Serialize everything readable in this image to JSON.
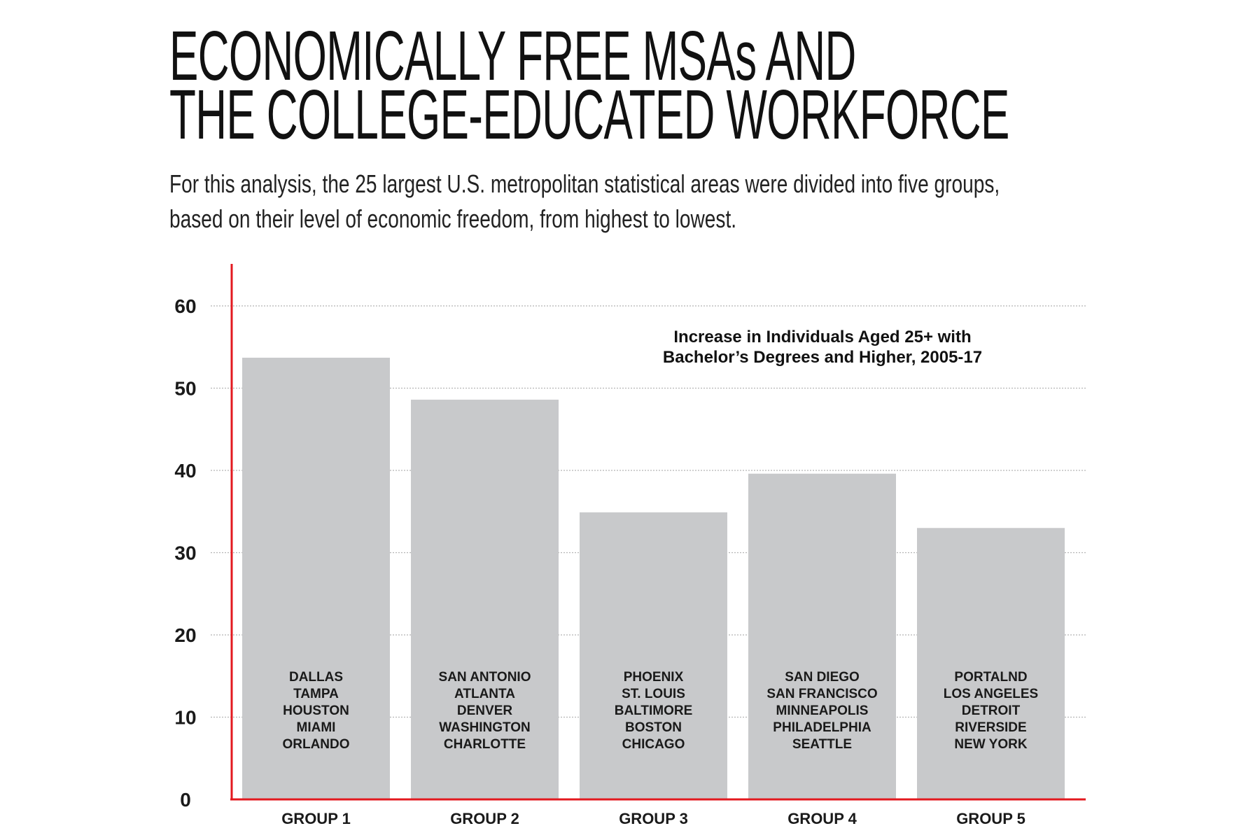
{
  "title": [
    "ECONOMICALLY FREE MSAs AND",
    "THE COLLEGE-EDUCATED WORKFORCE"
  ],
  "subtitle": [
    "For this analysis, the 25 largest U.S. metropolitan statistical areas were divided into five groups,",
    "based on their level of economic freedom, from highest to lowest."
  ],
  "chart_data": {
    "type": "bar",
    "annotation": [
      "Increase in Individuals Aged 25+ with",
      "Bachelor’s Degrees and Higher, 2005-17"
    ],
    "categories": [
      "GROUP 1",
      "GROUP 2",
      "GROUP 3",
      "GROUP 4",
      "GROUP 5"
    ],
    "values": [
      53.7,
      48.6,
      34.9,
      39.6,
      33.0
    ],
    "bar_labels": [
      [
        "DALLAS",
        "TAMPA",
        "HOUSTON",
        "MIAMI",
        "ORLANDO"
      ],
      [
        "SAN ANTONIO",
        "ATLANTA",
        "DENVER",
        "WASHINGTON",
        "CHARLOTTE"
      ],
      [
        "PHOENIX",
        "ST. LOUIS",
        "BALTIMORE",
        "BOSTON",
        "CHICAGO"
      ],
      [
        "SAN DIEGO",
        "SAN FRANCISCO",
        "MINNEAPOLIS",
        "PHILADELPHIA",
        "SEATTLE"
      ],
      [
        "PORTALND",
        "LOS ANGELES",
        "DETROIT",
        "RIVERSIDE",
        "NEW YORK"
      ]
    ],
    "yticks": [
      0,
      10,
      20,
      30,
      40,
      50,
      60
    ],
    "ylim": [
      0,
      60
    ],
    "grid": true,
    "colors": {
      "bar": "#c8c9cb",
      "axis": "#e3191f",
      "grid": "#b5b5b5"
    }
  }
}
